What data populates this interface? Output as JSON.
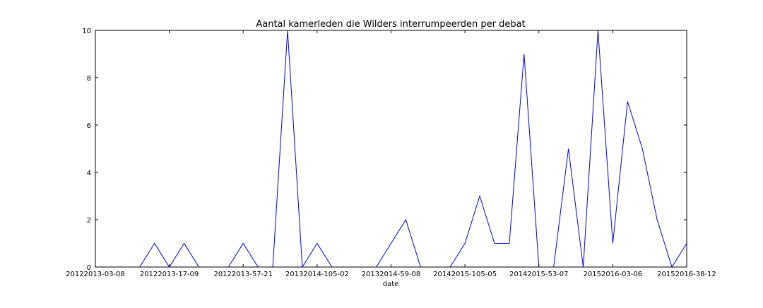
{
  "chart_data": {
    "type": "line",
    "title": "Aantal kamerleden die Wilders interrumpeerden per debat",
    "xlabel": "date",
    "ylabel": "",
    "ylim": [
      0,
      10
    ],
    "yticks": [
      0,
      2,
      4,
      6,
      8,
      10
    ],
    "xtick_labels": [
      "20122013-03-08",
      "20122013-17-09",
      "20122013-57-21",
      "20132014-105-02",
      "20132014-59-08",
      "20142015-105-05",
      "20142015-53-07",
      "20152016-03-06",
      "20152016-38-12"
    ],
    "xtick_positions": [
      0,
      5,
      10,
      15,
      20,
      25,
      30,
      35,
      40
    ],
    "x": [
      0,
      1,
      2,
      3,
      4,
      5,
      6,
      7,
      8,
      9,
      10,
      11,
      12,
      13,
      14,
      15,
      16,
      17,
      18,
      19,
      20,
      21,
      22,
      23,
      24,
      25,
      26,
      27,
      28,
      29,
      30,
      31,
      32,
      33,
      34,
      35,
      36,
      37,
      38,
      39,
      40
    ],
    "xlim": [
      0,
      40
    ],
    "legend": "none",
    "grid": false,
    "series": [
      {
        "color": "#0000ff",
        "values": [
          0,
          0,
          0,
          0,
          1,
          0,
          1,
          0,
          0,
          0,
          1,
          0,
          0,
          10,
          0,
          1,
          0,
          0,
          0,
          0,
          1,
          2,
          0,
          0,
          0,
          1,
          3,
          1,
          1,
          9,
          0,
          0,
          5,
          0,
          10,
          1,
          7,
          5,
          2,
          0,
          1
        ]
      }
    ]
  }
}
